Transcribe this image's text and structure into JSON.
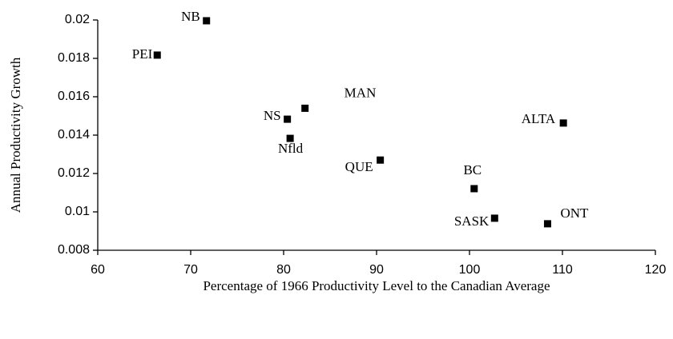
{
  "chart_data": {
    "type": "scatter",
    "x_label": "Percentage of 1966 Productivity Level to the Canadian Average",
    "y_label": "Annual Productivity Growth",
    "labels": [
      "NB",
      "PEI",
      "NS",
      "MAN",
      "Nfld",
      "QUE",
      "ALTA",
      "BC",
      "SASK",
      "ONT"
    ],
    "x": [
      71.7,
      66.4,
      80.4,
      82.3,
      80.7,
      90.4,
      110.1,
      100.5,
      102.7,
      108.4
    ],
    "values": [
      0.01996,
      0.01817,
      0.01483,
      0.0154,
      0.01383,
      0.0127,
      0.01463,
      0.01121,
      0.00967,
      0.00938
    ],
    "color": "#000000",
    "xlim": [
      60,
      120
    ],
    "xticks": [
      60,
      70,
      80,
      90,
      100,
      110,
      120
    ],
    "ylim": [
      0.008,
      0.02
    ],
    "yticks": [
      0.008,
      0.01,
      0.012,
      0.014,
      0.016,
      0.018,
      0.02
    ],
    "grid": false
  }
}
